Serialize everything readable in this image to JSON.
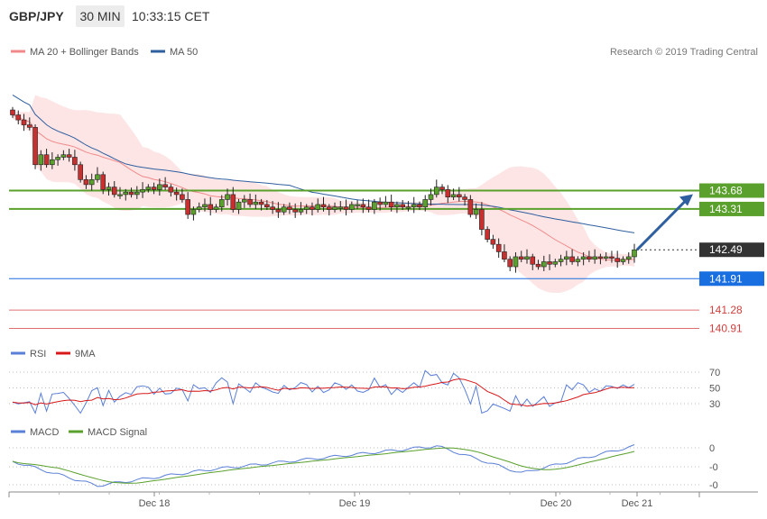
{
  "header": {
    "symbol": "GBP/JPY",
    "timeframe": "30 MIN",
    "time": "10:33:15 CET"
  },
  "chart_data": [
    {
      "type": "candlestick",
      "title": "",
      "legend": [
        {
          "name": "MA 20 + Bollinger Bands",
          "color": "#f08a8a"
        },
        {
          "name": "MA 50",
          "color": "#2f5f9f"
        }
      ],
      "legend_placement": "top-left",
      "copyright": "Research © 2019 Trading Central",
      "x_ticks": [
        "Dec 18",
        "Dec 19",
        "Dec 20",
        "Dec 21"
      ],
      "levels": [
        {
          "value": 143.68,
          "label": "143.68",
          "color": "#5aa02c",
          "kind": "resistance"
        },
        {
          "value": 143.31,
          "label": "143.31",
          "color": "#5aa02c",
          "kind": "resistance"
        },
        {
          "value": 142.49,
          "label": "142.49",
          "color": "#333333",
          "kind": "last-price"
        },
        {
          "value": 141.91,
          "label": "141.91",
          "color": "#1a6fe0",
          "kind": "pivot"
        },
        {
          "value": 141.28,
          "label": "141.28",
          "color": "#e07070",
          "kind": "support"
        },
        {
          "value": 140.91,
          "label": "140.91",
          "color": "#e07070",
          "kind": "support"
        }
      ],
      "arrow": {
        "from": 142.49,
        "to": 143.68,
        "direction": "up",
        "color": "#2f5f9f"
      },
      "candles_close": [
        145.2,
        145.1,
        145.0,
        144.95,
        144.2,
        144.4,
        144.2,
        144.3,
        144.35,
        144.4,
        144.35,
        144.2,
        143.9,
        143.8,
        143.9,
        144.0,
        143.7,
        143.75,
        143.6,
        143.6,
        143.65,
        143.6,
        143.65,
        143.7,
        143.75,
        143.7,
        143.8,
        143.75,
        143.65,
        143.6,
        143.5,
        143.2,
        143.3,
        143.35,
        143.4,
        143.3,
        143.35,
        143.5,
        143.6,
        143.3,
        143.45,
        143.5,
        143.4,
        143.45,
        143.4,
        143.35,
        143.3,
        143.25,
        143.35,
        143.3,
        143.25,
        143.3,
        143.35,
        143.3,
        143.4,
        143.35,
        143.3,
        143.35,
        143.35,
        143.3,
        143.4,
        143.4,
        143.35,
        143.3,
        143.45,
        143.4,
        143.45,
        143.35,
        143.4,
        143.35,
        143.35,
        143.4,
        143.35,
        143.5,
        143.6,
        143.75,
        143.7,
        143.55,
        143.6,
        143.55,
        143.5,
        143.2,
        143.3,
        142.9,
        142.7,
        142.6,
        142.45,
        142.3,
        142.15,
        142.35,
        142.3,
        142.35,
        142.2,
        142.15,
        142.25,
        142.2,
        142.25,
        142.3,
        142.35,
        142.25,
        142.3,
        142.35,
        142.3,
        142.35,
        142.32,
        142.35,
        142.32,
        142.25,
        142.3,
        142.35,
        142.49
      ],
      "indicators": [
        {
          "name": "RSI",
          "color": "#5a7fd6",
          "signal": {
            "name": "9MA",
            "color": "#d81818"
          },
          "ticks": [
            70,
            50,
            30
          ]
        },
        {
          "name": "MACD",
          "color": "#5a7fd6",
          "signal": {
            "name": "MACD Signal",
            "color": "#5aa02c"
          },
          "ticks": [
            "0",
            "-0",
            "-0"
          ]
        }
      ]
    }
  ]
}
